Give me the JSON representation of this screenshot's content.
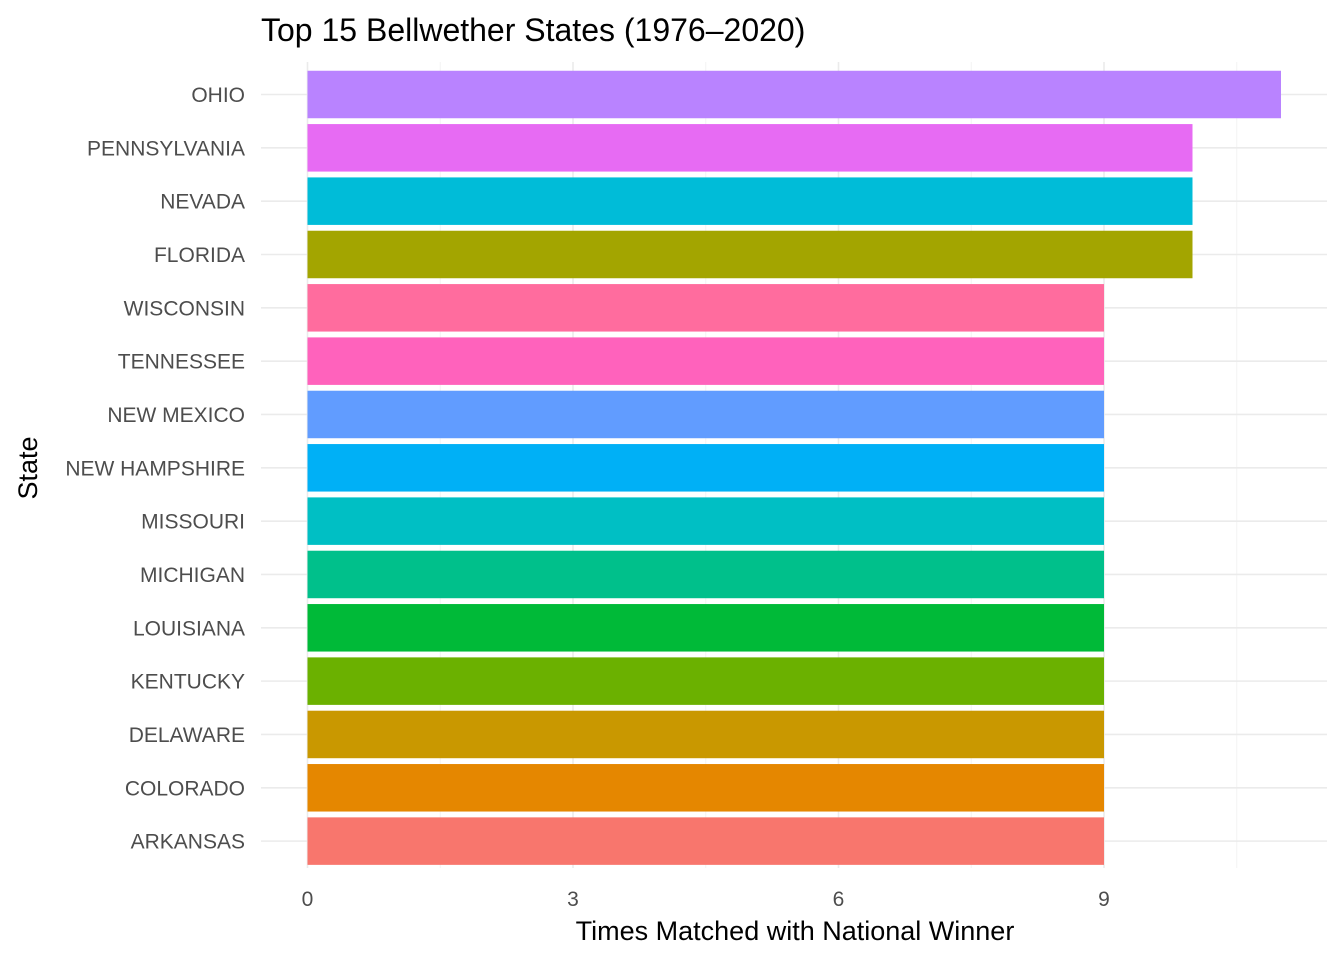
{
  "chart_data": {
    "type": "bar",
    "orientation": "horizontal",
    "title": "Top 15 Bellwether States (1976–2020)",
    "xlabel": "Times Matched with National Winner",
    "ylabel": "State",
    "xlim": [
      0,
      11
    ],
    "x_ticks": [
      0,
      3,
      6,
      9
    ],
    "grid": true,
    "legend": "none",
    "categories": [
      "OHIO",
      "PENNSYLVANIA",
      "NEVADA",
      "FLORIDA",
      "WISCONSIN",
      "TENNESSEE",
      "NEW MEXICO",
      "NEW HAMPSHIRE",
      "MISSOURI",
      "MICHIGAN",
      "LOUISIANA",
      "KENTUCKY",
      "DELAWARE",
      "COLORADO",
      "ARKANSAS"
    ],
    "values": [
      11,
      10,
      10,
      10,
      9,
      9,
      9,
      9,
      9,
      9,
      9,
      9,
      9,
      9,
      9
    ],
    "colors": [
      "#B983FF",
      "#E76BF3",
      "#00BCD8",
      "#A3A500",
      "#FF6C9E",
      "#FF62BC",
      "#619CFF",
      "#00B0F6",
      "#00BFC4",
      "#00C08B",
      "#00BA38",
      "#6BB100",
      "#C99800",
      "#E58700",
      "#F8766D"
    ]
  }
}
